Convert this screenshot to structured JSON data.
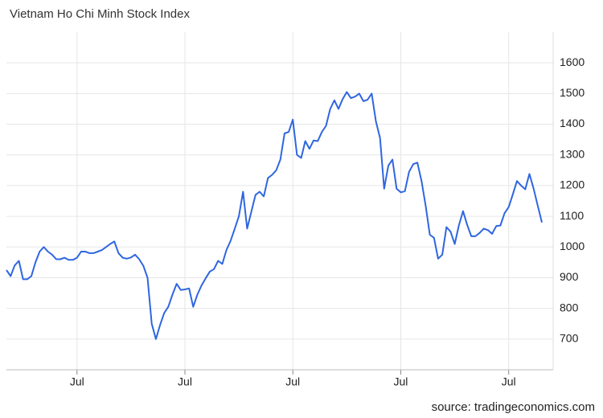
{
  "chart_data": {
    "type": "line",
    "title": "Vietnam Ho Chi Minh Stock Index",
    "source": "source: tradingeconomics.com",
    "categories": [
      null,
      null,
      null,
      null,
      null,
      null,
      null,
      null,
      null,
      null,
      null,
      null,
      null,
      null,
      null,
      null,
      null,
      "Jul",
      null,
      null,
      null,
      null,
      null,
      null,
      null,
      null,
      null,
      null,
      null,
      null,
      null,
      null,
      null,
      null,
      null,
      null,
      null,
      null,
      null,
      null,
      null,
      null,
      null,
      "Jul",
      null,
      null,
      null,
      null,
      null,
      null,
      null,
      null,
      null,
      null,
      null,
      null,
      null,
      null,
      null,
      null,
      null,
      null,
      null,
      null,
      null,
      null,
      null,
      null,
      null,
      "Jul",
      null,
      null,
      null,
      null,
      null,
      null,
      null,
      null,
      null,
      null,
      null,
      null,
      null,
      null,
      null,
      null,
      null,
      null,
      null,
      null,
      null,
      null,
      null,
      null,
      null,
      "Jul",
      null,
      null,
      null,
      null,
      null,
      null,
      null,
      null,
      null,
      null,
      null,
      null,
      null,
      null,
      null,
      null,
      null,
      null,
      null,
      null,
      null,
      null,
      null,
      null,
      null,
      "Jul",
      null,
      null,
      null,
      null,
      null,
      null,
      null,
      null
    ],
    "values": [
      925,
      905,
      940,
      955,
      895,
      895,
      905,
      950,
      985,
      1000,
      985,
      975,
      960,
      960,
      965,
      958,
      958,
      965,
      985,
      985,
      980,
      980,
      985,
      990,
      1000,
      1010,
      1018,
      980,
      965,
      962,
      966,
      975,
      960,
      938,
      900,
      750,
      700,
      745,
      785,
      805,
      845,
      880,
      860,
      862,
      865,
      805,
      845,
      875,
      898,
      920,
      928,
      955,
      945,
      990,
      1020,
      1060,
      1100,
      1180,
      1060,
      1115,
      1170,
      1180,
      1165,
      1225,
      1235,
      1250,
      1285,
      1370,
      1375,
      1415,
      1300,
      1290,
      1345,
      1320,
      1347,
      1345,
      1375,
      1395,
      1450,
      1478,
      1450,
      1482,
      1505,
      1485,
      1490,
      1500,
      1475,
      1480,
      1500,
      1410,
      1355,
      1190,
      1265,
      1285,
      1190,
      1178,
      1182,
      1245,
      1270,
      1275,
      1215,
      1135,
      1040,
      1030,
      962,
      975,
      1065,
      1050,
      1010,
      1070,
      1117,
      1072,
      1035,
      1035,
      1046,
      1060,
      1055,
      1043,
      1068,
      1070,
      1110,
      1130,
      1172,
      1215,
      1200,
      1188,
      1238,
      1190,
      1135,
      1080
    ],
    "color": "#2f66e0",
    "ylim": [
      600,
      1700
    ],
    "yticks": [
      700,
      800,
      900,
      1000,
      1100,
      1200,
      1300,
      1400,
      1500,
      1600
    ],
    "grid": true
  }
}
